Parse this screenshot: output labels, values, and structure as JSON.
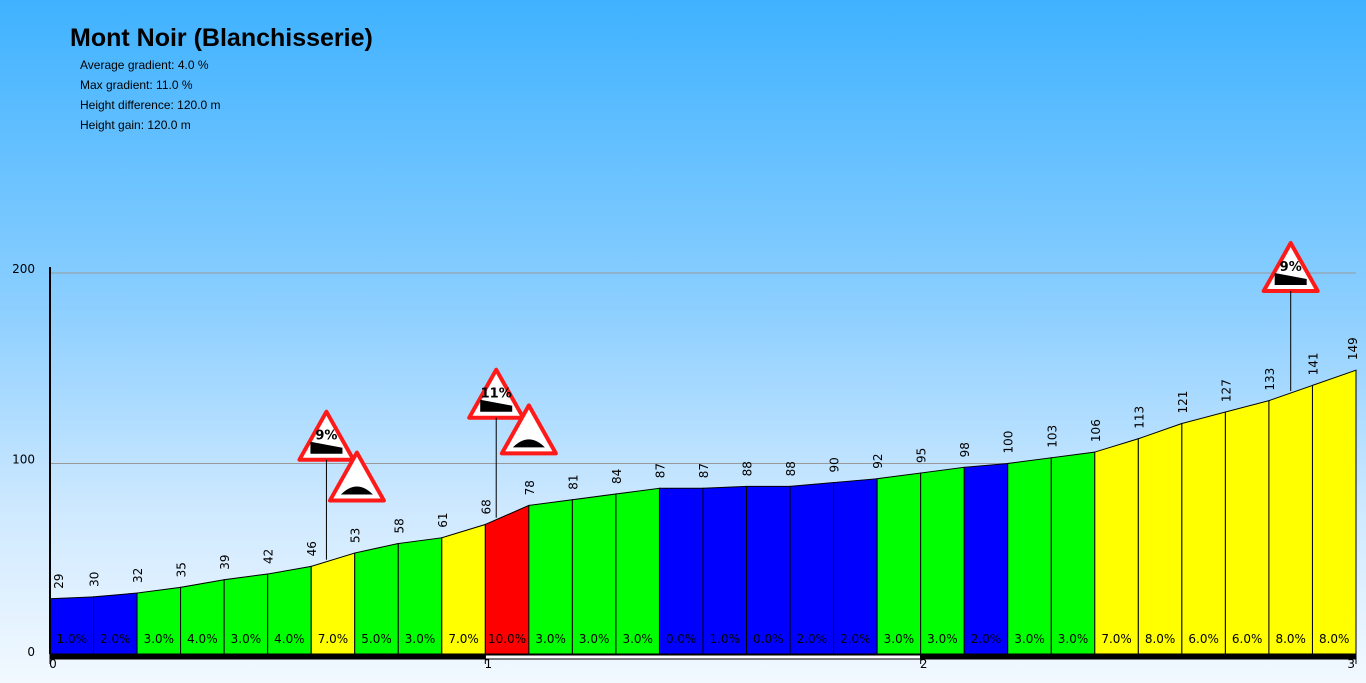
{
  "title": "Mont Noir (Blanchisserie)",
  "stats": [
    "Average gradient: 4.0 %",
    "Max gradient: 11.0 %",
    "Height difference: 120.0 m",
    "Height gain: 120.0 m"
  ],
  "chart_data": {
    "type": "area",
    "title": "Mont Noir (Blanchisserie)",
    "xlim": [
      0,
      3
    ],
    "ylim": [
      0,
      200
    ],
    "x_ticks": [
      "0",
      "1",
      "2",
      "3"
    ],
    "y_ticks": [
      "0",
      "100",
      "200"
    ],
    "grid": true,
    "elevations": [
      "29",
      "30",
      "32",
      "35",
      "39",
      "42",
      "46",
      "53",
      "58",
      "61",
      "68",
      "78",
      "81",
      "84",
      "87",
      "87",
      "88",
      "88",
      "90",
      "92",
      "95",
      "98",
      "100",
      "103",
      "106",
      "113",
      "121",
      "127",
      "133",
      "141",
      "149"
    ],
    "gradients": [
      "1.0%",
      "2.0%",
      "3.0%",
      "4.0%",
      "3.0%",
      "4.0%",
      "7.0%",
      "5.0%",
      "3.0%",
      "7.0%",
      "10.0%",
      "3.0%",
      "3.0%",
      "3.0%",
      "0.0%",
      "1.0%",
      "0.0%",
      "2.0%",
      "2.0%",
      "3.0%",
      "3.0%",
      "2.0%",
      "3.0%",
      "3.0%",
      "7.0%",
      "8.0%",
      "6.0%",
      "6.0%",
      "8.0%",
      "8.0%"
    ],
    "segment_colors": [
      "#0000ff",
      "#0000ff",
      "#00ff00",
      "#00ff00",
      "#00ff00",
      "#00ff00",
      "#ffff00",
      "#00ff00",
      "#00ff00",
      "#ffff00",
      "#ff0000",
      "#00ff00",
      "#00ff00",
      "#00ff00",
      "#0000ff",
      "#0000ff",
      "#0000ff",
      "#0000ff",
      "#0000ff",
      "#00ff00",
      "#00ff00",
      "#0000ff",
      "#00ff00",
      "#00ff00",
      "#ffff00",
      "#ffff00",
      "#ffff00",
      "#ffff00",
      "#ffff00",
      "#ffff00"
    ],
    "signs": [
      {
        "km": 0.635,
        "label": "9%",
        "kind": "steep"
      },
      {
        "km": 0.705,
        "label": "",
        "kind": "hump"
      },
      {
        "km": 1.025,
        "label": "11%",
        "kind": "steep"
      },
      {
        "km": 1.1,
        "label": "",
        "kind": "hump"
      },
      {
        "km": 2.85,
        "label": "9%",
        "kind": "steep"
      }
    ]
  }
}
